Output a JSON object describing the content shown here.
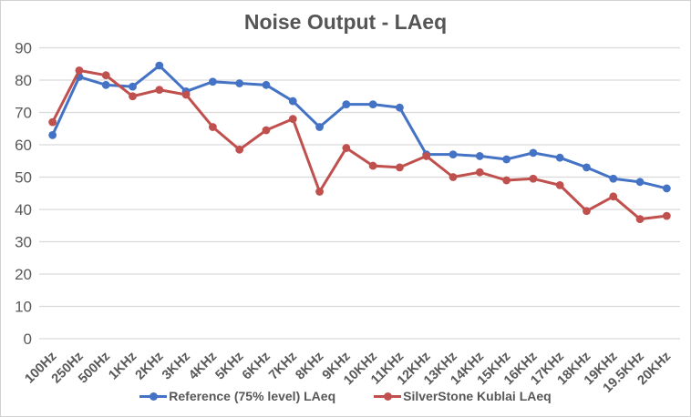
{
  "chart_data": {
    "type": "line",
    "title": "Noise Output - LAeq",
    "xlabel": "",
    "ylabel": "",
    "grid": true,
    "legend_position": "bottom",
    "y_axis": {
      "min": 0,
      "max": 90,
      "step": 10,
      "ticks": [
        0,
        10,
        20,
        30,
        40,
        50,
        60,
        70,
        80,
        90
      ]
    },
    "categories": [
      "100Hz",
      "250Hz",
      "500Hz",
      "1KHz",
      "2KHz",
      "3KHz",
      "4KHz",
      "5KHz",
      "6KHz",
      "7KHz",
      "8KHz",
      "9KHz",
      "10KHz",
      "11KHz",
      "12KHz",
      "13KHz",
      "14KHz",
      "15KHz",
      "16KHz",
      "17KHz",
      "18KHz",
      "19KHz",
      "19.5KHz",
      "20KHz"
    ],
    "series": [
      {
        "name": "Reference (75% level) LAeq",
        "color": "#4472c4",
        "marker": "circle",
        "values": [
          63,
          81,
          78.5,
          78,
          84.5,
          76.5,
          79.5,
          79,
          78.5,
          73.5,
          65.5,
          72.5,
          72.5,
          71.5,
          57,
          57,
          56.5,
          55.5,
          57.5,
          56,
          53,
          49.5,
          48.5,
          46.5
        ]
      },
      {
        "name": "SilverStone Kublai LAeq",
        "color": "#c0504d",
        "marker": "circle",
        "values": [
          67,
          83,
          81.5,
          75,
          77,
          75.5,
          65.5,
          58.5,
          64.5,
          68,
          45.5,
          59,
          53.5,
          53,
          56.5,
          50,
          51.5,
          49,
          49.5,
          47.5,
          39.5,
          44,
          37,
          38
        ]
      }
    ],
    "colors": {
      "gridline": "#d9d9d9",
      "axis_text": "#595959",
      "title_text": "#555555",
      "border": "#d2d2d2"
    }
  }
}
